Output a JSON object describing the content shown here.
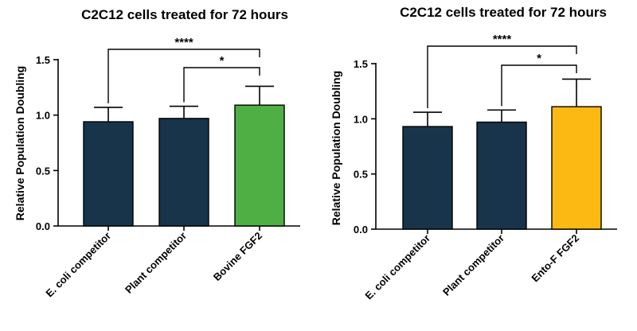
{
  "colors": {
    "dark_bar": "#17344a",
    "bovine_bar": "#4faf45",
    "ento_bar": "#fdb913",
    "axis": "#000000"
  },
  "chart_data": [
    {
      "type": "bar",
      "title": "C2C12 cells treated for 72 hours",
      "ylabel": "Relative Population Doubling",
      "xlabel": "",
      "categories": [
        "E. coli competitor",
        "Plant competitor",
        "Bovine FGF2"
      ],
      "values": [
        0.94,
        0.97,
        1.09
      ],
      "error": [
        0.13,
        0.11,
        0.17
      ],
      "colors": [
        "#17344a",
        "#17344a",
        "#4faf45"
      ],
      "ylim": [
        0,
        1.5
      ],
      "yticks": [
        "0.0",
        "0.5",
        "1.0",
        "1.5"
      ],
      "significance": [
        {
          "from": 0,
          "to": 2,
          "label": "****"
        },
        {
          "from": 1,
          "to": 2,
          "label": "*"
        }
      ],
      "grid": false,
      "legend": "none"
    },
    {
      "type": "bar",
      "title": "C2C12 cells treated for 72 hours",
      "ylabel": "Relative Population Doubling",
      "xlabel": "",
      "categories": [
        "E. coli competitor",
        "Plant competitor",
        "Ento-F FGF2"
      ],
      "values": [
        0.93,
        0.97,
        1.11
      ],
      "error": [
        0.13,
        0.11,
        0.25
      ],
      "colors": [
        "#17344a",
        "#17344a",
        "#fdb913"
      ],
      "ylim": [
        0,
        1.5
      ],
      "yticks": [
        "0.0",
        "0.5",
        "1.0",
        "1.5"
      ],
      "significance": [
        {
          "from": 0,
          "to": 2,
          "label": "****"
        },
        {
          "from": 1,
          "to": 2,
          "label": "*"
        }
      ],
      "grid": false,
      "legend": "none"
    }
  ]
}
